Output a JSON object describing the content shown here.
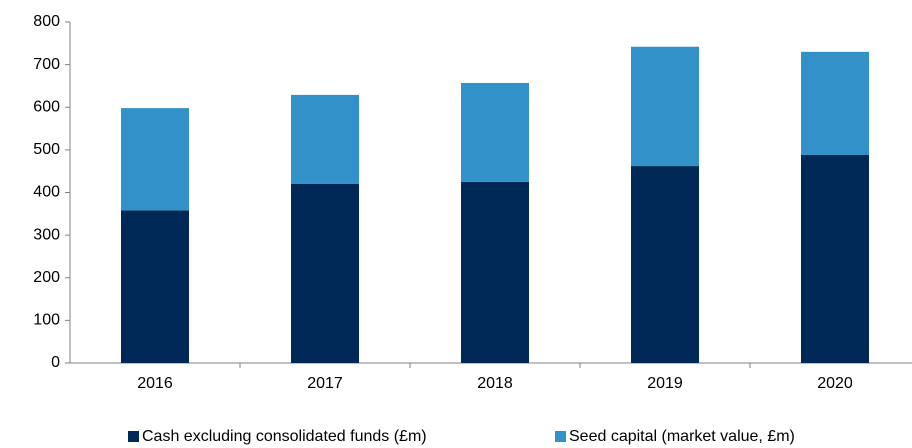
{
  "chart_data": {
    "type": "stacked-bar",
    "categories": [
      "2016",
      "2017",
      "2018",
      "2019",
      "2020"
    ],
    "series": [
      {
        "name": "Cash excluding consolidated funds (£m)",
        "color": "#002856",
        "values": [
          358,
          420,
          425,
          462,
          488
        ]
      },
      {
        "name": "Seed capital (market value, £m)",
        "color": "#3291c9",
        "values": [
          240,
          209,
          232,
          280,
          242
        ]
      }
    ],
    "ylim": [
      0,
      800
    ],
    "yticks": [
      0,
      100,
      200,
      300,
      400,
      500,
      600,
      700,
      800
    ],
    "grid": false
  }
}
